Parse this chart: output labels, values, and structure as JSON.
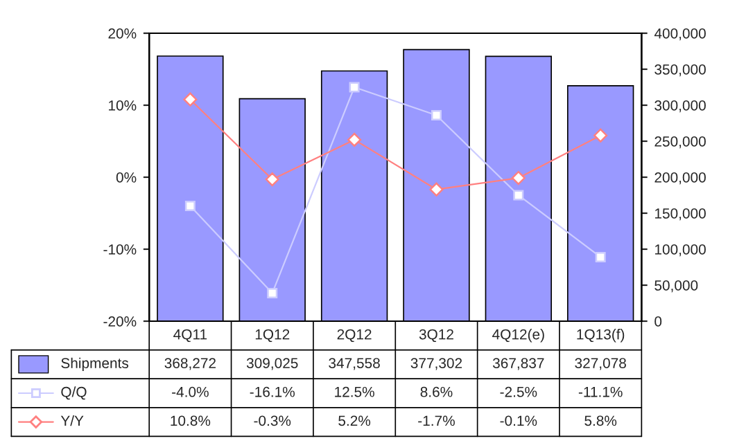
{
  "chart_data": {
    "type": "bar",
    "categories": [
      "4Q11",
      "1Q12",
      "2Q12",
      "3Q12",
      "4Q12(e)",
      "1Q13(f)"
    ],
    "series": [
      {
        "name": "Shipments",
        "axis": "y2",
        "color": "#9999ff",
        "values": [
          368272,
          309025,
          347558,
          377302,
          367837,
          327078
        ],
        "value_labels": [
          "368,272",
          "309,025",
          "347,558",
          "377,302",
          "367,837",
          "327,078"
        ]
      },
      {
        "name": "Q/Q",
        "type": "line",
        "axis": "y",
        "color": "#ccccff",
        "marker": "square",
        "values": [
          -4.0,
          -16.1,
          12.5,
          8.6,
          -2.5,
          -11.1
        ],
        "value_labels": [
          "-4.0%",
          "-16.1%",
          "12.5%",
          "8.6%",
          "-2.5%",
          "-11.1%"
        ]
      },
      {
        "name": "Y/Y",
        "type": "line",
        "axis": "y",
        "color": "#ff8080",
        "marker": "diamond",
        "values": [
          10.8,
          -0.3,
          5.2,
          -1.7,
          -0.1,
          5.8
        ],
        "value_labels": [
          "10.8%",
          "-0.3%",
          "5.2%",
          "-1.7%",
          "-0.1%",
          "5.8%"
        ]
      }
    ],
    "ylim": [
      -20,
      20
    ],
    "yticks": [
      {
        "value": -20,
        "label": "-20%"
      },
      {
        "value": -10,
        "label": "-10%"
      },
      {
        "value": 0,
        "label": "0%"
      },
      {
        "value": 10,
        "label": "10%"
      },
      {
        "value": 20,
        "label": "20%"
      }
    ],
    "y2lim": [
      0,
      400000
    ],
    "y2ticks": [
      0,
      {
        "value": 50000,
        "label": "50,000"
      },
      {
        "value": 100000,
        "label": "100,000"
      },
      {
        "value": 150000,
        "label": "150,000"
      },
      {
        "value": 200000,
        "label": "200,000"
      },
      {
        "value": 250000,
        "label": "250,000"
      },
      {
        "value": 300000,
        "label": "300,000"
      },
      {
        "value": 350000,
        "label": "350,000"
      },
      {
        "value": 400000,
        "label": "400,000"
      }
    ],
    "grid": false,
    "legend": "bottom"
  }
}
